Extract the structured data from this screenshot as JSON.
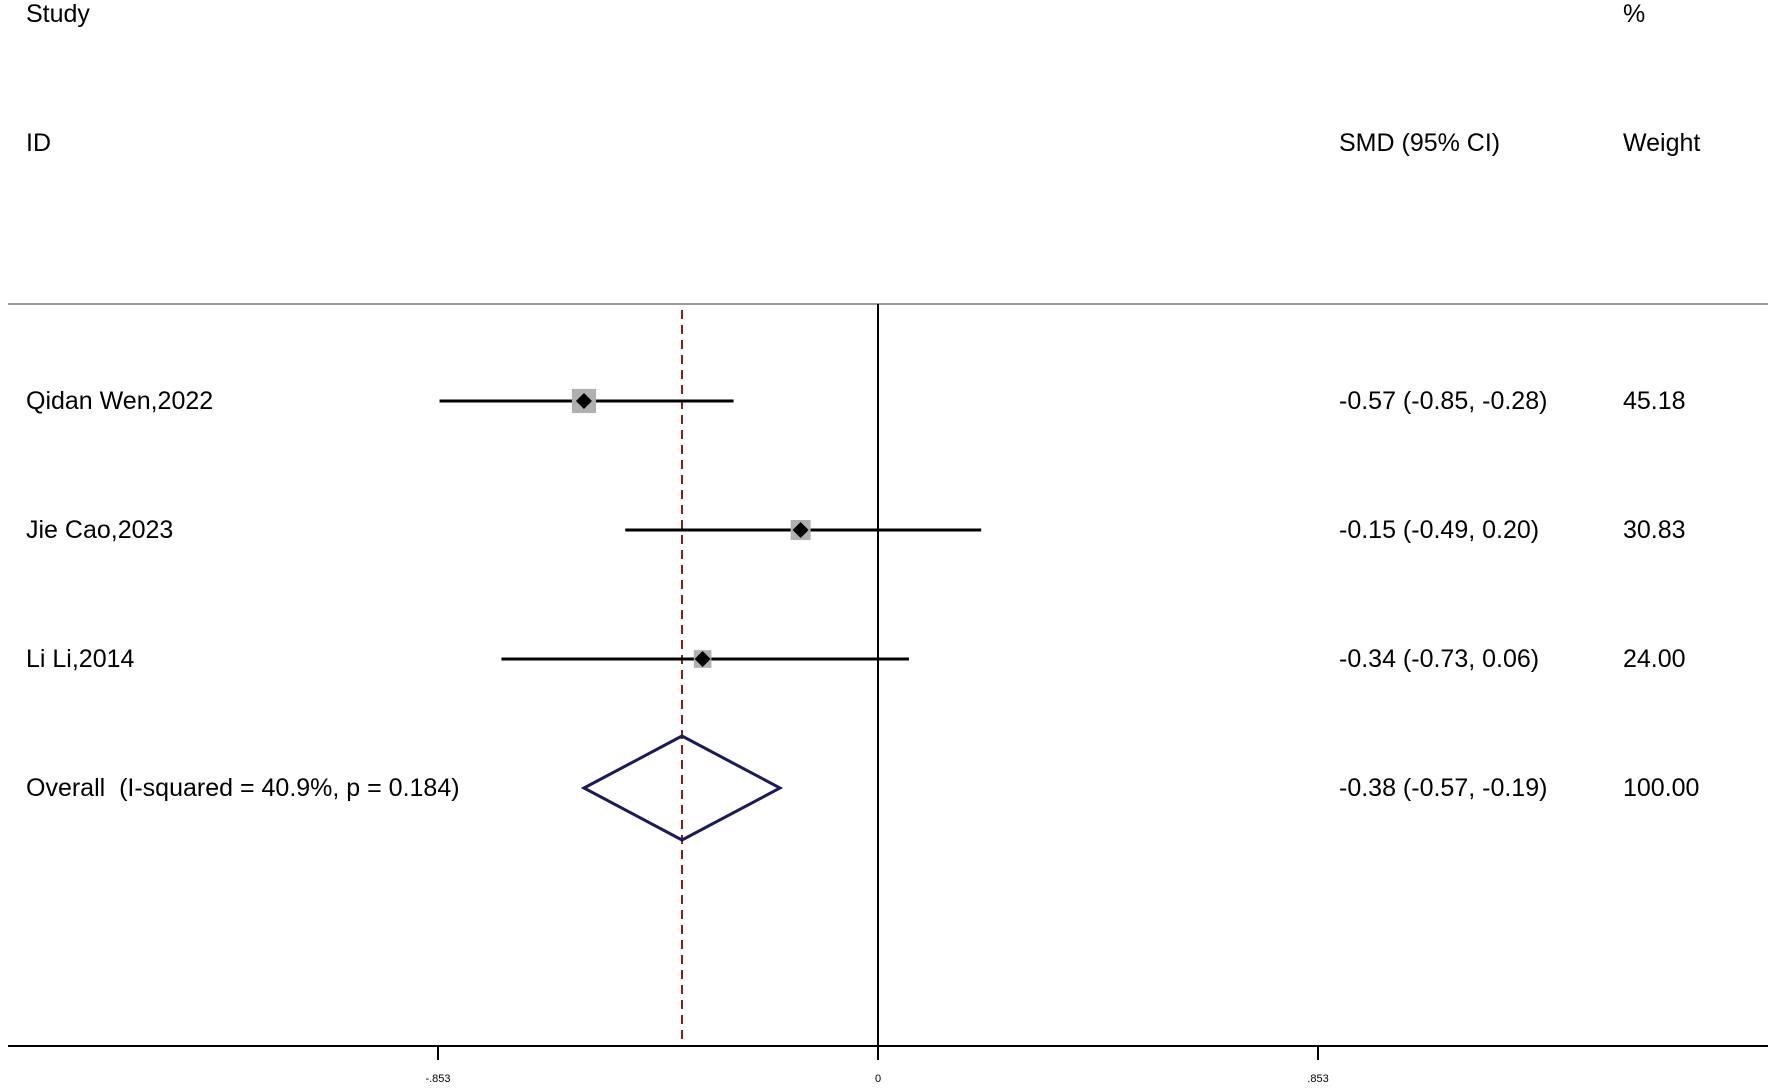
{
  "chart_data": {
    "type": "forest",
    "headers": {
      "study": "Study",
      "id": "ID",
      "effect": "SMD (95% CI)",
      "weight_pct": "%",
      "weight": "Weight"
    },
    "studies": [
      {
        "label": "Qidan Wen,2022",
        "estimate": -0.57,
        "lower": -0.85,
        "upper": -0.28,
        "ci_text": "-0.57 (-0.85, -0.28)",
        "weight": 45.18,
        "weight_text": "45.18"
      },
      {
        "label": "Jie Cao,2023",
        "estimate": -0.15,
        "lower": -0.49,
        "upper": 0.2,
        "ci_text": "-0.15 (-0.49, 0.20)",
        "weight": 30.83,
        "weight_text": "30.83"
      },
      {
        "label": "Li Li,2014",
        "estimate": -0.34,
        "lower": -0.73,
        "upper": 0.06,
        "ci_text": "-0.34 (-0.73, 0.06)",
        "weight": 24.0,
        "weight_text": "24.00"
      }
    ],
    "overall": {
      "label": "Overall  (I-squared = 40.9%, p = 0.184)",
      "estimate": -0.38,
      "lower": -0.57,
      "upper": -0.19,
      "ci_text": "-0.38 (-0.57, -0.19)",
      "weight_text": "100.00"
    },
    "xlim": [
      -0.853,
      0.853
    ],
    "ticks": [
      {
        "value": -0.853,
        "label": "-.853"
      },
      {
        "value": 0,
        "label": "0"
      },
      {
        "value": 0.853,
        "label": ".853"
      }
    ],
    "null_value": 0,
    "colors": {
      "overall_diamond": "#1a1a5e",
      "overall_line": "#8b1a1a",
      "weight_box": "#b0b0b0",
      "marker": "#000000"
    }
  }
}
